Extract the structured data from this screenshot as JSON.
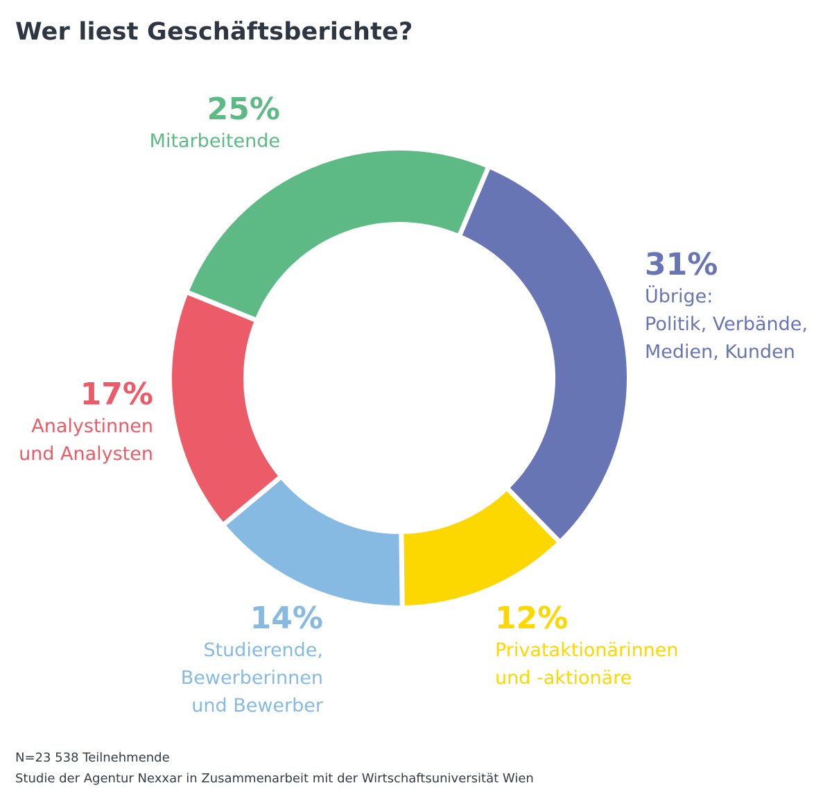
{
  "title": "Wer liest Geschäftsberichte?",
  "chart_data": {
    "type": "pie",
    "variant": "donut",
    "title": "Wer liest Geschäftsberichte?",
    "unit": "%",
    "slices": [
      {
        "key": "mitarbeitende",
        "value": 25,
        "display": "25%",
        "lines": [
          "Mitarbeitende"
        ],
        "color": "#5dba84"
      },
      {
        "key": "uebrige",
        "value": 31,
        "display": "31%",
        "lines": [
          "Übrige:",
          "Politik, Verbände,",
          "Medien, Kunden"
        ],
        "color": "#6775b4"
      },
      {
        "key": "privataktionaere",
        "value": 12,
        "display": "12%",
        "lines": [
          "Privataktionärinnen",
          "und -aktionäre"
        ],
        "color": "#fdd700"
      },
      {
        "key": "studierende",
        "value": 14,
        "display": "14%",
        "lines": [
          "Studierende,",
          "Bewerberinnen",
          "und Bewerber"
        ],
        "color": "#86bae3"
      },
      {
        "key": "analysten",
        "value": 17,
        "display": "17%",
        "lines": [
          "Analystinnen",
          "und Analysten"
        ],
        "color": "#eb5c68"
      }
    ]
  },
  "footer": {
    "sample": "N=23 538 Teilnehmende",
    "source": "Studie der Agentur Nexxar in Zusammenarbeit mit der Wirtschaftsuniversität Wien"
  }
}
